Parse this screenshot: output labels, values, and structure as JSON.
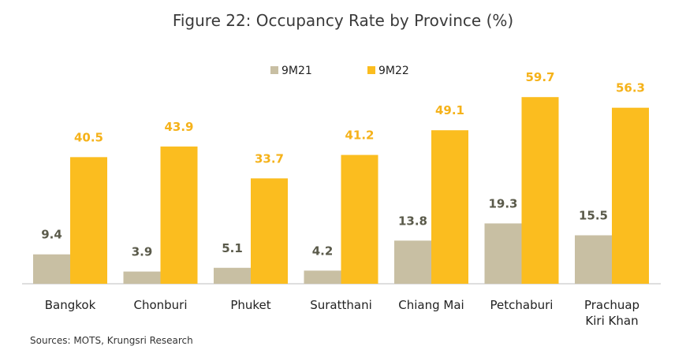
{
  "chart_data": {
    "type": "bar",
    "title": "Figure 22: Occupancy Rate by Province (%)",
    "source": "Sources: MOTS, Krungsri Research",
    "categories": [
      [
        "Bangkok"
      ],
      [
        "Chonburi"
      ],
      [
        "Phuket"
      ],
      [
        "Suratthani"
      ],
      [
        "Chiang Mai"
      ],
      [
        "Petchaburi"
      ],
      [
        "Prachuap",
        "Kiri Khan"
      ]
    ],
    "series": [
      {
        "name": "9M21",
        "color": "#c8bfa3",
        "label_color": "#5a5a4a",
        "values": [
          9.4,
          3.9,
          5.1,
          4.2,
          13.8,
          19.3,
          15.5
        ]
      },
      {
        "name": "9M22",
        "color": "#fbbd1f",
        "label_color": "#f5b21a",
        "values": [
          40.5,
          43.9,
          33.7,
          41.2,
          49.1,
          59.7,
          56.3
        ]
      }
    ],
    "ylim": [
      0,
      60
    ],
    "legend": "top",
    "grid": false
  }
}
